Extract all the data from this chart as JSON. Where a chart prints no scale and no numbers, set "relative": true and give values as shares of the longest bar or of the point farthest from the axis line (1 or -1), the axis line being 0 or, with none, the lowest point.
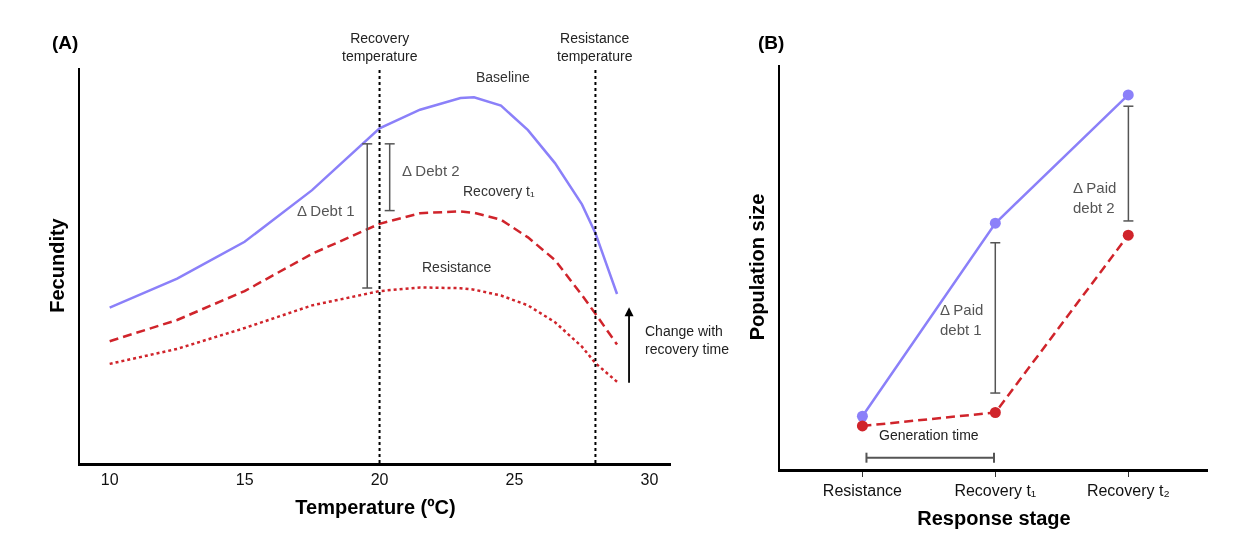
{
  "chart_data": [
    {
      "type": "line",
      "title": "(A)",
      "xlabel": "Temperature (ºC)",
      "ylabel": "Fecundity",
      "relative": true,
      "tick_labels": "x",
      "grid": false,
      "legend": false,
      "marker": "none",
      "x": [
        10,
        12.5,
        15,
        17.5,
        20,
        21.5,
        23,
        23.5,
        24.5,
        25.5,
        26.5,
        27.5,
        28,
        28.8
      ],
      "xlim": [
        8.9,
        30.8
      ],
      "xticks": [
        10,
        15,
        20,
        25,
        30
      ],
      "series": [
        {
          "name": "Baseline",
          "color": "#8b80f9",
          "line_style": "solid",
          "values": [
            0.425,
            0.504,
            0.605,
            0.746,
            0.915,
            0.966,
            0.998,
            1,
            0.977,
            0.91,
            0.82,
            0.707,
            0.628,
            0.462
          ]
        },
        {
          "name": "Recovery t₁",
          "color": "#d0242b",
          "line_style": "dashed",
          "values": [
            0.333,
            0.391,
            0.47,
            0.572,
            0.654,
            0.683,
            0.688,
            0.684,
            0.665,
            0.617,
            0.555,
            0.459,
            0.408,
            0.324
          ]
        },
        {
          "name": "Resistance",
          "color": "#d0242b",
          "line_style": "dotted",
          "values": [
            0.271,
            0.312,
            0.369,
            0.431,
            0.47,
            0.48,
            0.478,
            0.474,
            0.458,
            0.431,
            0.385,
            0.318,
            0.273,
            0.222
          ]
        }
      ],
      "ref_lines": [
        {
          "axis": "x",
          "value": 20,
          "label": "Recovery\ntemperature",
          "color": "#000000",
          "line_style": "dotted"
        },
        {
          "axis": "x",
          "value": 28,
          "label": "Resistance\ntemperature",
          "color": "#000000",
          "line_style": "dotted"
        }
      ],
      "annotations": [
        "Δ Debt 1",
        "Δ Debt 2",
        "Change with\nrecovery time"
      ]
    },
    {
      "type": "line",
      "title": "(B)",
      "xlabel": "Response stage",
      "ylabel": "Population size",
      "relative": true,
      "tick_labels": "x",
      "grid": false,
      "legend": false,
      "marker": "circle",
      "categories": [
        "Resistance",
        "Recovery t₁",
        "Recovery t₂"
      ],
      "series": [
        {
          "color": "#8b80f9",
          "line_style": "solid",
          "values": [
            0.141,
            0.657,
            1
          ]
        },
        {
          "color": "#d0242b",
          "line_style": "dashed",
          "values": [
            0.115,
            0.151,
            0.625
          ]
        }
      ],
      "annotations": [
        "Δ Paid\ndebt 1",
        "Δ Paid\ndebt 2",
        "Generation time"
      ]
    }
  ]
}
